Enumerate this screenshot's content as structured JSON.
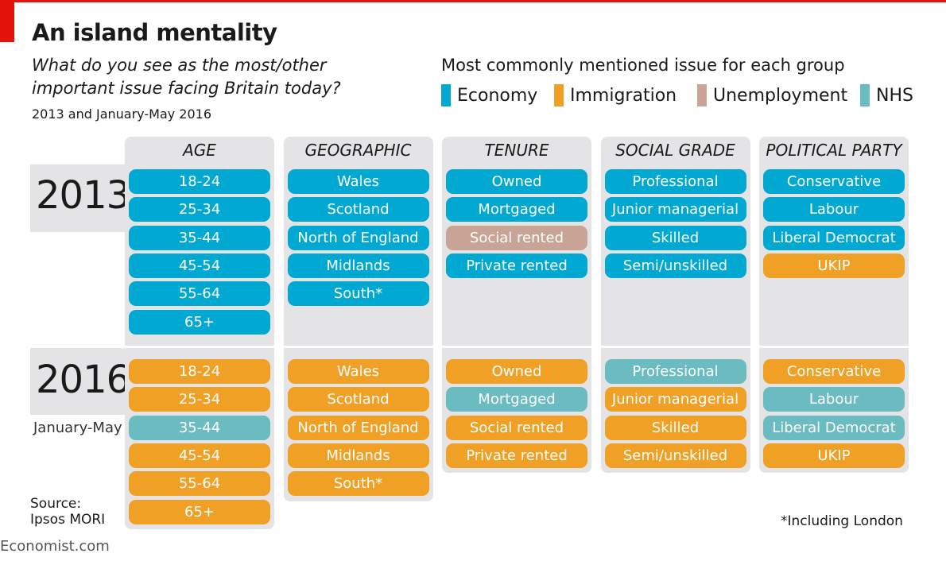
{
  "title": "An island mentality",
  "subtitle": "What do you see as the most/other important issue facing Britain today?",
  "period": "2013 and January-May 2016",
  "source": "Source:",
  "source_name": "Ipsos MORI",
  "note": "*Including London",
  "brand": "Economist.com",
  "chart_data": {
    "type": "table",
    "legend_title": "Most commonly mentioned issue for each group",
    "issues": [
      {
        "key": "E",
        "name": "Economy",
        "color": "#00a8d2"
      },
      {
        "key": "I",
        "name": "Immigration",
        "color": "#f0a024"
      },
      {
        "key": "U",
        "name": "Unemployment",
        "color": "#c8a496"
      },
      {
        "key": "N",
        "name": "NHS",
        "color": "#6bbcc1"
      }
    ],
    "years": [
      {
        "label": "2013",
        "sublabel": ""
      },
      {
        "label": "2016",
        "sublabel": "January-May"
      }
    ],
    "columns": [
      {
        "name": "AGE",
        "groups": [
          "18-24",
          "25-34",
          "35-44",
          "45-54",
          "55-64",
          "65+"
        ],
        "y2013": [
          "E",
          "E",
          "E",
          "E",
          "E",
          "E"
        ],
        "y2016": [
          "I",
          "I",
          "N",
          "I",
          "I",
          "I"
        ]
      },
      {
        "name": "GEOGRAPHIC",
        "groups": [
          "Wales",
          "Scotland",
          "North of England",
          "Midlands",
          "South*"
        ],
        "y2013": [
          "E",
          "E",
          "E",
          "E",
          "E"
        ],
        "y2016": [
          "I",
          "I",
          "I",
          "I",
          "I"
        ]
      },
      {
        "name": "TENURE",
        "groups": [
          "Owned",
          "Mortgaged",
          "Social rented",
          "Private rented"
        ],
        "y2013": [
          "E",
          "E",
          "U",
          "E"
        ],
        "y2016": [
          "I",
          "N",
          "I",
          "I"
        ]
      },
      {
        "name": "SOCIAL GRADE",
        "groups": [
          "Professional",
          "Junior managerial",
          "Skilled",
          "Semi/unskilled"
        ],
        "y2013": [
          "E",
          "E",
          "E",
          "E"
        ],
        "y2016": [
          "N",
          "I",
          "I",
          "I"
        ]
      },
      {
        "name": "POLITICAL PARTY",
        "groups": [
          "Conservative",
          "Labour",
          "Liberal Democrat",
          "UKIP"
        ],
        "y2013": [
          "E",
          "E",
          "E",
          "I"
        ],
        "y2016": [
          "I",
          "N",
          "N",
          "I"
        ]
      }
    ]
  }
}
